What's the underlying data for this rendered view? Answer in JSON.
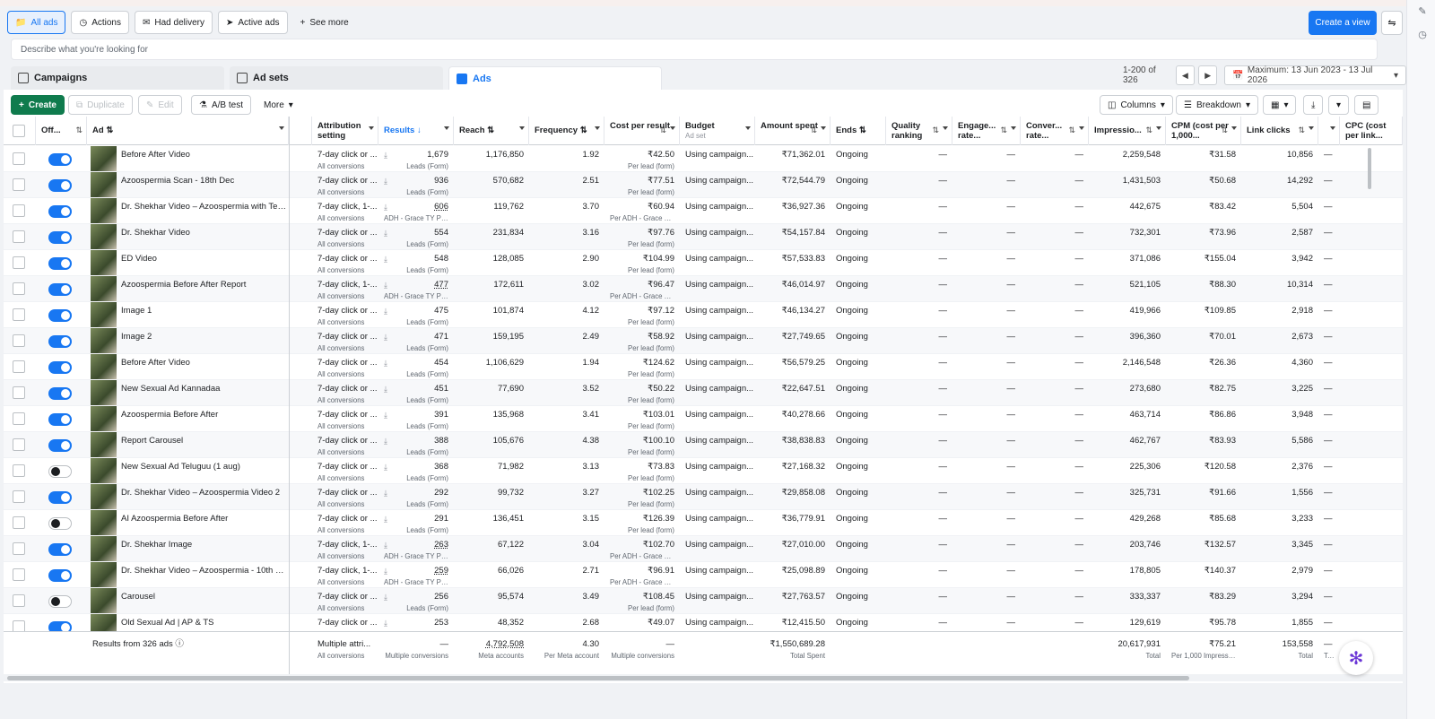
{
  "view_tabs": [
    {
      "label": "All ads",
      "icon": "folder-icon",
      "active": true
    },
    {
      "label": "Actions",
      "icon": "actions-icon",
      "active": false
    },
    {
      "label": "Had delivery",
      "icon": "delivery-icon",
      "active": false
    },
    {
      "label": "Active ads",
      "icon": "send-icon",
      "active": false
    }
  ],
  "see_more": "See more",
  "create_view": "Create a view",
  "search_placeholder": "Describe what you're looking for",
  "level_tabs": {
    "campaigns": "Campaigns",
    "adsets": "Ad sets",
    "ads": "Ads"
  },
  "pager": {
    "range": "1-200 of 326",
    "date": "Maximum: 13 Jun 2023 - 13 Jul 2026"
  },
  "toolbar": {
    "create": "Create",
    "duplicate": "Duplicate",
    "edit": "Edit",
    "abtest": "A/B test",
    "more": "More",
    "columns": "Columns",
    "breakdown": "Breakdown"
  },
  "headers": {
    "offon": "Off...",
    "ad": "Ad",
    "attribution": "Attribution setting",
    "results": "Results",
    "reach": "Reach",
    "frequency": "Frequency",
    "cpr": "Cost per result",
    "budget": "Budget",
    "budget_sub": "Ad set",
    "amount": "Amount spent",
    "ends": "Ends",
    "quality": "Quality ranking",
    "engage": "Engage... rate...",
    "conver": "Conver... rate...",
    "impressions": "Impressio...",
    "cpm": "CPM (cost per 1,000...",
    "linkclicks": "Link clicks",
    "cpc": "CPC (cost per link..."
  },
  "rows": [
    {
      "on": true,
      "name": "Before After Video",
      "attr": "7-day click or ...",
      "attr_sub": "All conversions",
      "results": "1,679",
      "results_sub": "Leads (Form)",
      "reach": "1,176,850",
      "freq": "1.92",
      "cpr": "₹42.50",
      "cpr_sub": "Per lead (form)",
      "budget": "Using campaign...",
      "amount": "₹71,362.01",
      "ends": "Ongoing",
      "quality": "—",
      "engage": "—",
      "conver": "—",
      "impr": "2,259,548",
      "cpm": "₹31.58",
      "clicks": "10,856",
      "cpc": "—"
    },
    {
      "on": true,
      "name": "Azoospermia Scan - 18th Dec",
      "attr": "7-day click or ...",
      "attr_sub": "All conversions",
      "results": "936",
      "results_sub": "Leads (Form)",
      "reach": "570,682",
      "freq": "2.51",
      "cpr": "₹77.51",
      "cpr_sub": "Per lead (form)",
      "budget": "Using campaign...",
      "amount": "₹72,544.79",
      "ends": "Ongoing",
      "quality": "—",
      "engage": "—",
      "conver": "—",
      "impr": "1,431,503",
      "cpm": "₹50.68",
      "clicks": "14,292",
      "cpc": "—"
    },
    {
      "on": true,
      "name": "Dr. Shekhar Video – Azoospermia with Testi...",
      "attr": "7-day click, 1-...",
      "attr_sub": "All conversions",
      "results": "606",
      "results_sub": "ADH - Grace TY Pa...",
      "reach": "119,762",
      "freq": "3.70",
      "cpr": "₹60.94",
      "cpr_sub": "Per ADH - Grace TY...",
      "budget": "Using campaign...",
      "amount": "₹36,927.36",
      "ends": "Ongoing",
      "quality": "—",
      "engage": "—",
      "conver": "—",
      "impr": "442,675",
      "cpm": "₹83.42",
      "clicks": "5,504",
      "cpc": "—"
    },
    {
      "on": true,
      "name": "Dr. Shekhar Video",
      "attr": "7-day click or ...",
      "attr_sub": "All conversions",
      "results": "554",
      "results_sub": "Leads (Form)",
      "reach": "231,834",
      "freq": "3.16",
      "cpr": "₹97.76",
      "cpr_sub": "Per lead (form)",
      "budget": "Using campaign...",
      "amount": "₹54,157.84",
      "ends": "Ongoing",
      "quality": "—",
      "engage": "—",
      "conver": "—",
      "impr": "732,301",
      "cpm": "₹73.96",
      "clicks": "2,587",
      "cpc": "—"
    },
    {
      "on": true,
      "name": "ED Video",
      "attr": "7-day click or ...",
      "attr_sub": "All conversions",
      "results": "548",
      "results_sub": "Leads (Form)",
      "reach": "128,085",
      "freq": "2.90",
      "cpr": "₹104.99",
      "cpr_sub": "Per lead (form)",
      "budget": "Using campaign...",
      "amount": "₹57,533.83",
      "ends": "Ongoing",
      "quality": "—",
      "engage": "—",
      "conver": "—",
      "impr": "371,086",
      "cpm": "₹155.04",
      "clicks": "3,942",
      "cpc": "—"
    },
    {
      "on": true,
      "name": "Azoospermia Before After Report",
      "attr": "7-day click, 1-...",
      "attr_sub": "All conversions",
      "results": "477",
      "results_sub": "ADH - Grace TY Pa...",
      "reach": "172,611",
      "freq": "3.02",
      "cpr": "₹96.47",
      "cpr_sub": "Per ADH - Grace TY...",
      "budget": "Using campaign...",
      "amount": "₹46,014.97",
      "ends": "Ongoing",
      "quality": "—",
      "engage": "—",
      "conver": "—",
      "impr": "521,105",
      "cpm": "₹88.30",
      "clicks": "10,314",
      "cpc": "—"
    },
    {
      "on": true,
      "name": "Image 1",
      "attr": "7-day click or ...",
      "attr_sub": "All conversions",
      "results": "475",
      "results_sub": "Leads (Form)",
      "reach": "101,874",
      "freq": "4.12",
      "cpr": "₹97.12",
      "cpr_sub": "Per lead (form)",
      "budget": "Using campaign...",
      "amount": "₹46,134.27",
      "ends": "Ongoing",
      "quality": "—",
      "engage": "—",
      "conver": "—",
      "impr": "419,966",
      "cpm": "₹109.85",
      "clicks": "2,918",
      "cpc": "—"
    },
    {
      "on": true,
      "name": "Image 2",
      "attr": "7-day click or ...",
      "attr_sub": "All conversions",
      "results": "471",
      "results_sub": "Leads (Form)",
      "reach": "159,195",
      "freq": "2.49",
      "cpr": "₹58.92",
      "cpr_sub": "Per lead (form)",
      "budget": "Using campaign...",
      "amount": "₹27,749.65",
      "ends": "Ongoing",
      "quality": "—",
      "engage": "—",
      "conver": "—",
      "impr": "396,360",
      "cpm": "₹70.01",
      "clicks": "2,673",
      "cpc": "—"
    },
    {
      "on": true,
      "name": "Before After Video",
      "attr": "7-day click or ...",
      "attr_sub": "All conversions",
      "results": "454",
      "results_sub": "Leads (Form)",
      "reach": "1,106,629",
      "freq": "1.94",
      "cpr": "₹124.62",
      "cpr_sub": "Per lead (form)",
      "budget": "Using campaign...",
      "amount": "₹56,579.25",
      "ends": "Ongoing",
      "quality": "—",
      "engage": "—",
      "conver": "—",
      "impr": "2,146,548",
      "cpm": "₹26.36",
      "clicks": "4,360",
      "cpc": "—"
    },
    {
      "on": true,
      "name": "New Sexual Ad Kannadaa",
      "attr": "7-day click or ...",
      "attr_sub": "All conversions",
      "results": "451",
      "results_sub": "Leads (Form)",
      "reach": "77,690",
      "freq": "3.52",
      "cpr": "₹50.22",
      "cpr_sub": "Per lead (form)",
      "budget": "Using campaign...",
      "amount": "₹22,647.51",
      "ends": "Ongoing",
      "quality": "—",
      "engage": "—",
      "conver": "—",
      "impr": "273,680",
      "cpm": "₹82.75",
      "clicks": "3,225",
      "cpc": "—"
    },
    {
      "on": true,
      "name": "Azoospermia Before After",
      "attr": "7-day click or ...",
      "attr_sub": "All conversions",
      "results": "391",
      "results_sub": "Leads (Form)",
      "reach": "135,968",
      "freq": "3.41",
      "cpr": "₹103.01",
      "cpr_sub": "Per lead (form)",
      "budget": "Using campaign...",
      "amount": "₹40,278.66",
      "ends": "Ongoing",
      "quality": "—",
      "engage": "—",
      "conver": "—",
      "impr": "463,714",
      "cpm": "₹86.86",
      "clicks": "3,948",
      "cpc": "—"
    },
    {
      "on": true,
      "name": "Report Carousel",
      "attr": "7-day click or ...",
      "attr_sub": "All conversions",
      "results": "388",
      "results_sub": "Leads (Form)",
      "reach": "105,676",
      "freq": "4.38",
      "cpr": "₹100.10",
      "cpr_sub": "Per lead (form)",
      "budget": "Using campaign...",
      "amount": "₹38,838.83",
      "ends": "Ongoing",
      "quality": "—",
      "engage": "—",
      "conver": "—",
      "impr": "462,767",
      "cpm": "₹83.93",
      "clicks": "5,586",
      "cpc": "—"
    },
    {
      "on": false,
      "name": "New Sexual Ad Teluguu (1 aug)",
      "attr": "7-day click or ...",
      "attr_sub": "All conversions",
      "results": "368",
      "results_sub": "Leads (Form)",
      "reach": "71,982",
      "freq": "3.13",
      "cpr": "₹73.83",
      "cpr_sub": "Per lead (form)",
      "budget": "Using campaign...",
      "amount": "₹27,168.32",
      "ends": "Ongoing",
      "quality": "—",
      "engage": "—",
      "conver": "—",
      "impr": "225,306",
      "cpm": "₹120.58",
      "clicks": "2,376",
      "cpc": "—"
    },
    {
      "on": true,
      "name": "Dr. Shekhar Video – Azoospermia Video 2",
      "attr": "7-day click or ...",
      "attr_sub": "All conversions",
      "results": "292",
      "results_sub": "Leads (Form)",
      "reach": "99,732",
      "freq": "3.27",
      "cpr": "₹102.25",
      "cpr_sub": "Per lead (form)",
      "budget": "Using campaign...",
      "amount": "₹29,858.08",
      "ends": "Ongoing",
      "quality": "—",
      "engage": "—",
      "conver": "—",
      "impr": "325,731",
      "cpm": "₹91.66",
      "clicks": "1,556",
      "cpc": "—"
    },
    {
      "on": false,
      "name": "AI Azoospermia Before After",
      "attr": "7-day click or ...",
      "attr_sub": "All conversions",
      "results": "291",
      "results_sub": "Leads (Form)",
      "reach": "136,451",
      "freq": "3.15",
      "cpr": "₹126.39",
      "cpr_sub": "Per lead (form)",
      "budget": "Using campaign...",
      "amount": "₹36,779.91",
      "ends": "Ongoing",
      "quality": "—",
      "engage": "—",
      "conver": "—",
      "impr": "429,268",
      "cpm": "₹85.68",
      "clicks": "3,233",
      "cpc": "—"
    },
    {
      "on": true,
      "name": "Dr. Shekhar Image",
      "attr": "7-day click, 1-...",
      "attr_sub": "All conversions",
      "results": "263",
      "results_sub": "ADH - Grace TY Pa...",
      "reach": "67,122",
      "freq": "3.04",
      "cpr": "₹102.70",
      "cpr_sub": "Per ADH - Grace TY...",
      "budget": "Using campaign...",
      "amount": "₹27,010.00",
      "ends": "Ongoing",
      "quality": "—",
      "engage": "—",
      "conver": "—",
      "impr": "203,746",
      "cpm": "₹132.57",
      "clicks": "3,345",
      "cpc": "—"
    },
    {
      "on": true,
      "name": "Dr. Shekhar Video – Azoospermia - 10th Ju...",
      "attr": "7-day click, 1-...",
      "attr_sub": "All conversions",
      "results": "259",
      "results_sub": "ADH - Grace TY Pa...",
      "reach": "66,026",
      "freq": "2.71",
      "cpr": "₹96.91",
      "cpr_sub": "Per ADH - Grace TY...",
      "budget": "Using campaign...",
      "amount": "₹25,098.89",
      "ends": "Ongoing",
      "quality": "—",
      "engage": "—",
      "conver": "—",
      "impr": "178,805",
      "cpm": "₹140.37",
      "clicks": "2,979",
      "cpc": "—"
    },
    {
      "on": false,
      "name": "Carousel",
      "attr": "7-day click or ...",
      "attr_sub": "All conversions",
      "results": "256",
      "results_sub": "Leads (Form)",
      "reach": "95,574",
      "freq": "3.49",
      "cpr": "₹108.45",
      "cpr_sub": "Per lead (form)",
      "budget": "Using campaign...",
      "amount": "₹27,763.57",
      "ends": "Ongoing",
      "quality": "—",
      "engage": "—",
      "conver": "—",
      "impr": "333,337",
      "cpm": "₹83.29",
      "clicks": "3,294",
      "cpc": "—"
    },
    {
      "on": true,
      "name": "Old Sexual Ad | AP & TS",
      "attr": "7-day click or ...",
      "attr_sub": "All conversions",
      "results": "253",
      "results_sub": "Leads (Form)",
      "reach": "48,352",
      "freq": "2.68",
      "cpr": "₹49.07",
      "cpr_sub": "Per lead (form)",
      "budget": "Using campaign...",
      "amount": "₹12,415.50",
      "ends": "Ongoing",
      "quality": "—",
      "engage": "—",
      "conver": "—",
      "impr": "129,619",
      "cpm": "₹95.78",
      "clicks": "1,855",
      "cpc": "—"
    }
  ],
  "footer": {
    "label": "Results from 326 ads",
    "attr": "Multiple attri...",
    "attr_sub": "All conversions",
    "results": "—",
    "results_sub": "Multiple conversions",
    "reach": "4,792,508",
    "reach_sub": "Meta accounts",
    "freq": "4.30",
    "freq_sub": "Per Meta account",
    "cpr": "—",
    "cpr_sub": "Multiple conversions",
    "amount": "₹1,550,689.28",
    "amount_sub": "Total Spent",
    "impr": "20,617,931",
    "impr_sub": "Total",
    "cpm": "₹75.21",
    "cpm_sub": "Per 1,000 Impressio...",
    "clicks": "153,558",
    "clicks_sub": "Total",
    "cpc": "—",
    "cpc_sub": "To..."
  }
}
